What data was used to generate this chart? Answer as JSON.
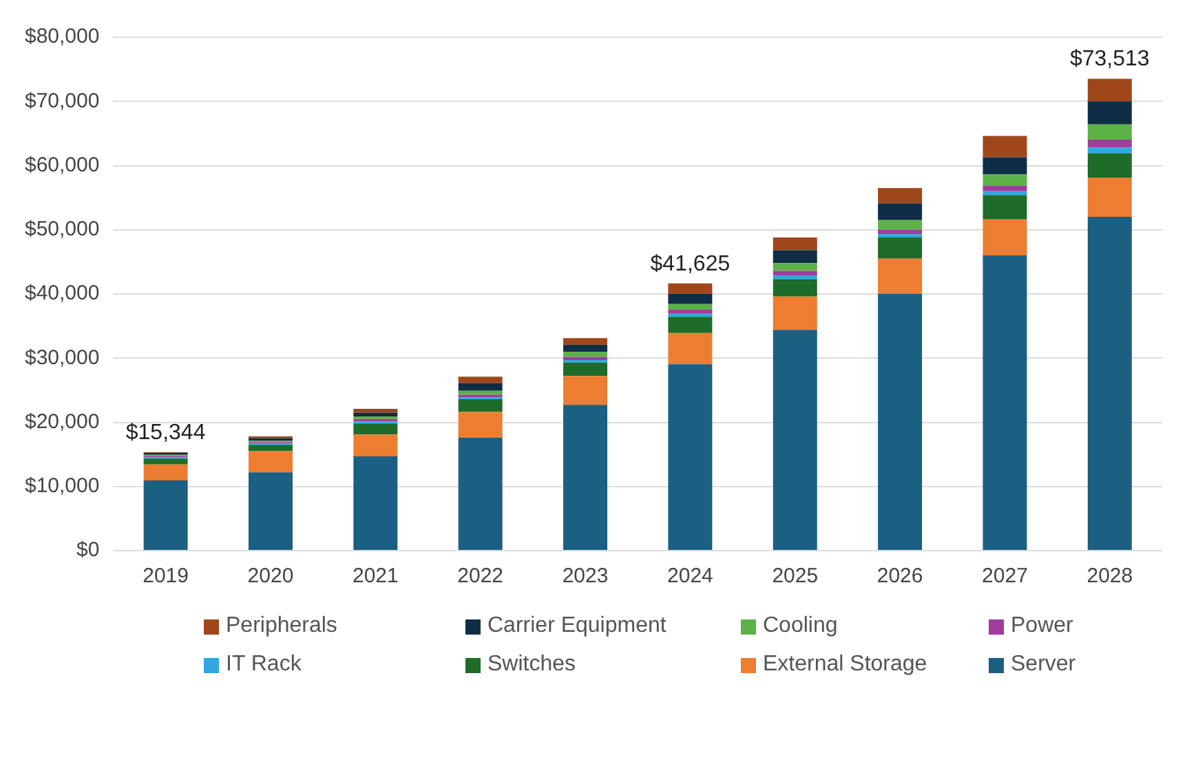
{
  "chart_data": {
    "type": "bar",
    "stacked": true,
    "categories": [
      "2019",
      "2020",
      "2021",
      "2022",
      "2023",
      "2024",
      "2025",
      "2026",
      "2027",
      "2028"
    ],
    "series": [
      {
        "name": "Server",
        "color": "#1b5f82",
        "values": [
          10944,
          12200,
          14700,
          17600,
          22700,
          29025,
          34400,
          40000,
          46000,
          52013
        ]
      },
      {
        "name": "External Storage",
        "color": "#ed7d31",
        "values": [
          2500,
          3300,
          3400,
          4000,
          4500,
          4900,
          5200,
          5500,
          5600,
          6100
        ]
      },
      {
        "name": "Switches",
        "color": "#1e6b2a",
        "values": [
          900,
          1000,
          1700,
          2000,
          2100,
          2500,
          2700,
          3300,
          3800,
          3800
        ]
      },
      {
        "name": "IT Rack",
        "color": "#2ea8e0",
        "values": [
          200,
          200,
          300,
          300,
          400,
          500,
          600,
          500,
          600,
          900
        ]
      },
      {
        "name": "Power",
        "color": "#a03c9c",
        "values": [
          200,
          200,
          400,
          400,
          500,
          600,
          700,
          700,
          900,
          1200
        ]
      },
      {
        "name": "Cooling",
        "color": "#5cb247",
        "values": [
          200,
          200,
          400,
          600,
          800,
          900,
          1200,
          1500,
          1700,
          2400
        ]
      },
      {
        "name": "Carrier Equipment",
        "color": "#0f2d45",
        "values": [
          300,
          400,
          600,
          1200,
          1100,
          1600,
          2000,
          2600,
          2700,
          3600
        ]
      },
      {
        "name": "Peripherals",
        "color": "#a0461b",
        "values": [
          100,
          300,
          600,
          1000,
          1000,
          1600,
          2000,
          2400,
          3300,
          3500
        ]
      }
    ],
    "totals": [
      "$15,344",
      null,
      null,
      null,
      null,
      "$41,625",
      null,
      null,
      null,
      "$73,513"
    ],
    "ylim": [
      0,
      80000
    ],
    "yticks": [
      {
        "value": 0,
        "label": "$0"
      },
      {
        "value": 10000,
        "label": "$10,000"
      },
      {
        "value": 20000,
        "label": "$20,000"
      },
      {
        "value": 30000,
        "label": "$30,000"
      },
      {
        "value": 40000,
        "label": "$40,000"
      },
      {
        "value": 50000,
        "label": "$50,000"
      },
      {
        "value": 60000,
        "label": "$60,000"
      },
      {
        "value": 70000,
        "label": "$70,000"
      },
      {
        "value": 80000,
        "label": "$80,000"
      }
    ],
    "grid": "y",
    "legend": "bottom"
  }
}
